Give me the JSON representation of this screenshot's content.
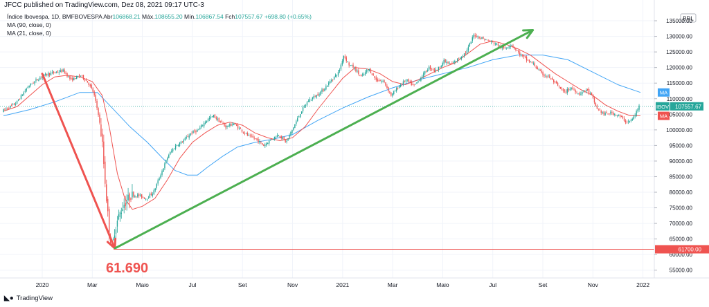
{
  "header": {
    "title": "JFCC published on TradingView.com, Dez 08, 2021 09:17 UTC-3"
  },
  "legend": {
    "symbol": "Índice Ibovespa, 1D, BMFBOVESPA",
    "open_label": "Abr",
    "open": "106868.21",
    "high_label": "Máx.",
    "high": "108655.20",
    "low_label": "Mín.",
    "low": "106867.54",
    "close_label": "Fch",
    "close": "107557.67",
    "change": "+698.80 (+0.65%)",
    "ma1": "MA (90, close, 0)",
    "ma2": "MA (21, close, 0)"
  },
  "footer": {
    "logo_text": "TradingView"
  },
  "annotation": {
    "low_label": "61.690"
  },
  "colors": {
    "up": "#26a69a",
    "down": "#ef5350",
    "ma_slow": "#42a5f5",
    "ma_fast": "#ef5350",
    "arrow_red": "#ef5350",
    "arrow_green": "#4caf50",
    "bg": "#ffffff"
  },
  "chart_data": {
    "type": "line",
    "currency": "BRL",
    "y_ticks": [
      55000,
      60000,
      65000,
      70000,
      75000,
      80000,
      85000,
      90000,
      95000,
      100000,
      105000,
      110000,
      115000,
      120000,
      125000,
      130000,
      135000
    ],
    "y_tick_labels": [
      "55000.00",
      "60000.00",
      "65000.00",
      "70000.00",
      "75000.00",
      "80000.00",
      "85000.00",
      "90000.00",
      "95000.00",
      "100000.00",
      "105000.00",
      "110000.00",
      "115000.00",
      "120000.00",
      "125000.00",
      "130000.00",
      "135000.00"
    ],
    "ylim": [
      52500,
      139000
    ],
    "x_labels": [
      "2020",
      "Mar",
      "Maio",
      "Jul",
      "Set",
      "Nov",
      "2021",
      "Mar",
      "Maio",
      "Jul",
      "Set",
      "Nov",
      "2022"
    ],
    "x_label_months": [
      0,
      2,
      4,
      6,
      8,
      10,
      12,
      14,
      16,
      18,
      20,
      22,
      24
    ],
    "xlim_months": [
      -1.55,
      23.9
    ],
    "price_path": [
      [
        -1.55,
        106000
      ],
      [
        -1.0,
        108500
      ],
      [
        -0.5,
        114000
      ],
      [
        0.0,
        117000
      ],
      [
        0.3,
        118000
      ],
      [
        0.6,
        118500
      ],
      [
        0.9,
        119000
      ],
      [
        1.2,
        116000
      ],
      [
        1.6,
        117500
      ],
      [
        1.9,
        115000
      ],
      [
        2.1,
        112000
      ],
      [
        2.3,
        105000
      ],
      [
        2.45,
        96000
      ],
      [
        2.55,
        85000
      ],
      [
        2.65,
        75000
      ],
      [
        2.75,
        66000
      ],
      [
        2.85,
        62000
      ],
      [
        2.95,
        68000
      ],
      [
        3.1,
        72000
      ],
      [
        3.3,
        76000
      ],
      [
        3.6,
        79000
      ],
      [
        3.9,
        79000
      ],
      [
        4.2,
        78000
      ],
      [
        4.5,
        80000
      ],
      [
        4.8,
        86000
      ],
      [
        5.1,
        92000
      ],
      [
        5.4,
        95000
      ],
      [
        5.7,
        96500
      ],
      [
        6.0,
        99000
      ],
      [
        6.3,
        100000
      ],
      [
        6.6,
        103000
      ],
      [
        6.9,
        104500
      ],
      [
        7.1,
        103000
      ],
      [
        7.4,
        101000
      ],
      [
        7.7,
        102000
      ],
      [
        8.0,
        100000
      ],
      [
        8.3,
        98000
      ],
      [
        8.6,
        97000
      ],
      [
        8.9,
        95000
      ],
      [
        9.2,
        97000
      ],
      [
        9.5,
        98500
      ],
      [
        9.8,
        96000
      ],
      [
        10.1,
        101000
      ],
      [
        10.4,
        106000
      ],
      [
        10.7,
        109500
      ],
      [
        11.0,
        111000
      ],
      [
        11.3,
        113000
      ],
      [
        11.6,
        116000
      ],
      [
        11.9,
        118500
      ],
      [
        12.1,
        124000
      ],
      [
        12.3,
        121000
      ],
      [
        12.5,
        120000
      ],
      [
        12.8,
        117000
      ],
      [
        13.1,
        119500
      ],
      [
        13.4,
        116000
      ],
      [
        13.7,
        115500
      ],
      [
        14.0,
        111000
      ],
      [
        14.3,
        114000
      ],
      [
        14.6,
        116000
      ],
      [
        14.9,
        114000
      ],
      [
        15.2,
        117000
      ],
      [
        15.5,
        120000
      ],
      [
        15.8,
        119000
      ],
      [
        16.1,
        122000
      ],
      [
        16.4,
        121000
      ],
      [
        16.7,
        123000
      ],
      [
        17.0,
        125000
      ],
      [
        17.3,
        130500
      ],
      [
        17.6,
        129500
      ],
      [
        17.9,
        128500
      ],
      [
        18.2,
        127500
      ],
      [
        18.5,
        126000
      ],
      [
        18.8,
        127500
      ],
      [
        19.1,
        124500
      ],
      [
        19.4,
        122500
      ],
      [
        19.7,
        121000
      ],
      [
        20.0,
        118000
      ],
      [
        20.3,
        117000
      ],
      [
        20.6,
        114500
      ],
      [
        20.9,
        112000
      ],
      [
        21.2,
        113500
      ],
      [
        21.5,
        111500
      ],
      [
        21.8,
        113000
      ],
      [
        22.0,
        111000
      ],
      [
        22.2,
        107000
      ],
      [
        22.5,
        105000
      ],
      [
        22.8,
        105500
      ],
      [
        23.1,
        104500
      ],
      [
        23.4,
        102500
      ],
      [
        23.6,
        103000
      ],
      [
        23.75,
        105000
      ],
      [
        23.9,
        107557.67
      ]
    ],
    "series": [
      {
        "name": "IBOV",
        "role": "price",
        "last_value": 107557.67,
        "last_label": "107557.67"
      },
      {
        "name": "MA",
        "role": "ma90",
        "last_value": 112000,
        "points": [
          [
            -1.55,
            104500
          ],
          [
            -0.5,
            106500
          ],
          [
            0.5,
            109000
          ],
          [
            1.5,
            112000
          ],
          [
            2.2,
            112000
          ],
          [
            2.8,
            107000
          ],
          [
            3.5,
            101000
          ],
          [
            4.2,
            96000
          ],
          [
            4.8,
            91000
          ],
          [
            5.3,
            87000
          ],
          [
            5.8,
            85500
          ],
          [
            6.2,
            85500
          ],
          [
            6.6,
            88000
          ],
          [
            7.2,
            91500
          ],
          [
            7.8,
            94500
          ],
          [
            8.5,
            96000
          ],
          [
            9.2,
            97000
          ],
          [
            10.0,
            98500
          ],
          [
            11.0,
            103000
          ],
          [
            12.0,
            107000
          ],
          [
            13.0,
            110500
          ],
          [
            14.0,
            113500
          ],
          [
            15.0,
            116000
          ],
          [
            16.0,
            118000
          ],
          [
            17.0,
            120000
          ],
          [
            18.0,
            122500
          ],
          [
            19.0,
            124000
          ],
          [
            20.0,
            124000
          ],
          [
            21.0,
            122500
          ],
          [
            22.0,
            118500
          ],
          [
            23.0,
            114500
          ],
          [
            23.9,
            112000
          ]
        ]
      },
      {
        "name": "MA",
        "role": "ma21",
        "last_value": 104500,
        "points": [
          [
            -1.55,
            106000
          ],
          [
            -1.0,
            107500
          ],
          [
            -0.5,
            111000
          ],
          [
            0.0,
            114500
          ],
          [
            0.5,
            117000
          ],
          [
            1.0,
            117500
          ],
          [
            1.5,
            117000
          ],
          [
            2.0,
            115500
          ],
          [
            2.4,
            111000
          ],
          [
            2.7,
            100000
          ],
          [
            3.0,
            86000
          ],
          [
            3.3,
            78000
          ],
          [
            3.6,
            74500
          ],
          [
            4.0,
            75500
          ],
          [
            4.5,
            78000
          ],
          [
            5.0,
            84000
          ],
          [
            5.5,
            91000
          ],
          [
            6.0,
            96000
          ],
          [
            6.5,
            99000
          ],
          [
            7.0,
            101500
          ],
          [
            7.5,
            102500
          ],
          [
            8.0,
            101500
          ],
          [
            8.5,
            99000
          ],
          [
            9.0,
            97500
          ],
          [
            9.5,
            96500
          ],
          [
            10.0,
            97500
          ],
          [
            10.5,
            101000
          ],
          [
            11.0,
            106500
          ],
          [
            11.5,
            111500
          ],
          [
            12.0,
            116500
          ],
          [
            12.5,
            120000
          ],
          [
            13.0,
            119500
          ],
          [
            13.5,
            118000
          ],
          [
            14.0,
            115500
          ],
          [
            14.5,
            114500
          ],
          [
            15.0,
            116000
          ],
          [
            15.5,
            118000
          ],
          [
            16.0,
            120000
          ],
          [
            16.5,
            121500
          ],
          [
            17.0,
            124500
          ],
          [
            17.5,
            127500
          ],
          [
            18.0,
            128500
          ],
          [
            18.5,
            127500
          ],
          [
            19.0,
            126000
          ],
          [
            19.5,
            124000
          ],
          [
            20.0,
            121000
          ],
          [
            20.5,
            118000
          ],
          [
            21.0,
            115500
          ],
          [
            21.5,
            113000
          ],
          [
            22.0,
            111000
          ],
          [
            22.5,
            108000
          ],
          [
            23.0,
            106000
          ],
          [
            23.5,
            104500
          ],
          [
            23.9,
            104500
          ]
        ]
      }
    ],
    "horizontal_line": {
      "value": 61700,
      "label": "61700.00"
    },
    "drawings": [
      {
        "type": "arrow",
        "color": "red",
        "from": [
          0.0,
          118000
        ],
        "to": [
          2.9,
          62000
        ]
      },
      {
        "type": "arrow",
        "color": "green",
        "from": [
          2.9,
          62000
        ],
        "to": [
          19.6,
          132000
        ]
      }
    ]
  }
}
